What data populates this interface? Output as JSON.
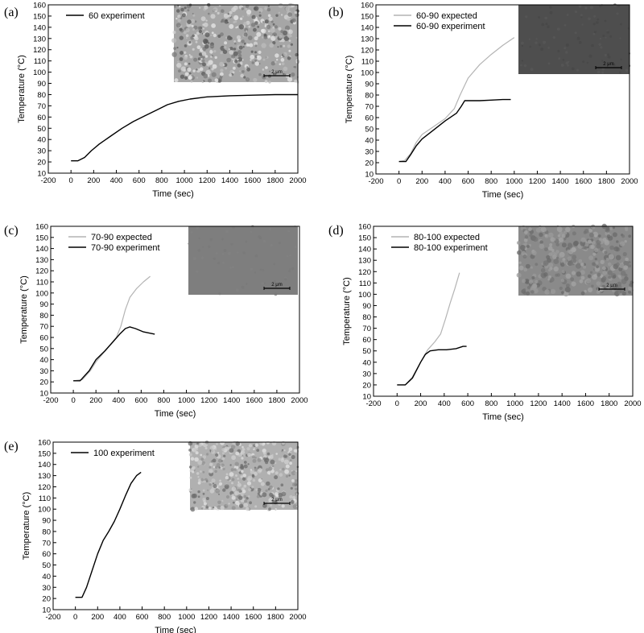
{
  "colors": {
    "experiment": "#000000",
    "expected": "#b4b4b4",
    "inset_light": "#bfbfbf",
    "inset_dark": "#555555",
    "inset_gray": "#888888"
  },
  "chart_data": [
    {
      "id": "a",
      "panel_label": "(a)",
      "type": "line",
      "xlabel": "Time (sec)",
      "ylabel": "Temperature (°C)",
      "xlim": [
        -200,
        2000
      ],
      "ylim": [
        10,
        160
      ],
      "xticks": [
        -200,
        0,
        200,
        400,
        600,
        800,
        1000,
        1200,
        1400,
        1600,
        1800,
        2000
      ],
      "yticks": [
        10,
        20,
        30,
        40,
        50,
        60,
        70,
        80,
        90,
        100,
        110,
        120,
        130,
        140,
        150,
        160
      ],
      "series": [
        {
          "name": "60 experiment",
          "kind": "experiment",
          "x": [
            0,
            60,
            120,
            180,
            250,
            350,
            450,
            550,
            650,
            750,
            850,
            950,
            1050,
            1200,
            1400,
            1600,
            1800,
            2000
          ],
          "y": [
            21,
            21,
            24,
            30,
            36,
            43,
            50,
            56,
            61,
            66,
            71,
            74,
            76,
            78,
            79,
            79.5,
            80,
            80
          ]
        }
      ],
      "inset": {
        "texture": "grainy",
        "scale_bar": "2 μm"
      }
    },
    {
      "id": "b",
      "panel_label": "(b)",
      "type": "line",
      "xlabel": "Time (sec)",
      "ylabel": "Temperature (°C)",
      "xlim": [
        -200,
        2000
      ],
      "ylim": [
        10,
        160
      ],
      "xticks": [
        -200,
        0,
        200,
        400,
        600,
        800,
        1000,
        1200,
        1400,
        1600,
        1800,
        2000
      ],
      "yticks": [
        10,
        20,
        30,
        40,
        50,
        60,
        70,
        80,
        90,
        100,
        110,
        120,
        130,
        140,
        150,
        160
      ],
      "series": [
        {
          "name": "60-90 expected",
          "kind": "expected",
          "x": [
            0,
            50,
            100,
            150,
            200,
            300,
            400,
            480,
            530,
            600,
            700,
            800,
            900,
            1000
          ],
          "y": [
            21,
            22,
            28,
            38,
            45,
            52,
            59,
            68,
            80,
            95,
            107,
            116,
            124,
            131
          ]
        },
        {
          "name": "60-90 experiment",
          "kind": "experiment",
          "x": [
            0,
            60,
            100,
            150,
            200,
            300,
            400,
            500,
            540,
            570,
            600,
            700,
            800,
            900,
            970
          ],
          "y": [
            21,
            21,
            27,
            35,
            41,
            49,
            57,
            64,
            70,
            75,
            75,
            75,
            75.5,
            76,
            76
          ]
        }
      ],
      "inset": {
        "texture": "dark",
        "scale_bar": "2 μm"
      }
    },
    {
      "id": "c",
      "panel_label": "(c)",
      "type": "line",
      "xlabel": "Time (sec)",
      "ylabel": "Temperature (°C)",
      "xlim": [
        -200,
        2000
      ],
      "ylim": [
        10,
        160
      ],
      "xticks": [
        -200,
        0,
        200,
        400,
        600,
        800,
        1000,
        1200,
        1400,
        1600,
        1800,
        2000
      ],
      "yticks": [
        10,
        20,
        30,
        40,
        50,
        60,
        70,
        80,
        90,
        100,
        110,
        120,
        130,
        140,
        150,
        160
      ],
      "series": [
        {
          "name": "70-90 expected",
          "kind": "expected",
          "x": [
            0,
            80,
            150,
            200,
            300,
            380,
            420,
            460,
            500,
            560,
            620,
            680
          ],
          "y": [
            21,
            22,
            30,
            38,
            50,
            60,
            70,
            85,
            96,
            104,
            110,
            115
          ]
        },
        {
          "name": "70-90 experiment",
          "kind": "experiment",
          "x": [
            0,
            60,
            140,
            200,
            280,
            350,
            410,
            460,
            500,
            550,
            620,
            720
          ],
          "y": [
            21,
            21,
            30,
            40,
            48,
            56,
            63,
            68,
            69.5,
            68,
            65,
            63
          ]
        }
      ],
      "inset": {
        "texture": "gray",
        "scale_bar": "2 μm"
      }
    },
    {
      "id": "d",
      "panel_label": "(d)",
      "type": "line",
      "xlabel": "Time (sec)",
      "ylabel": "Temperature (°C)",
      "xlim": [
        -200,
        2000
      ],
      "ylim": [
        10,
        160
      ],
      "xticks": [
        -200,
        0,
        200,
        400,
        600,
        800,
        1000,
        1200,
        1400,
        1600,
        1800,
        2000
      ],
      "yticks": [
        10,
        20,
        30,
        40,
        50,
        60,
        70,
        80,
        90,
        100,
        110,
        120,
        130,
        140,
        150,
        160
      ],
      "series": [
        {
          "name": "80-100 expected",
          "kind": "expected",
          "x": [
            0,
            70,
            130,
            200,
            260,
            320,
            370,
            410,
            450,
            490,
            530
          ],
          "y": [
            20,
            20,
            27,
            40,
            51,
            58,
            65,
            78,
            92,
            105,
            119
          ]
        },
        {
          "name": "80-100 experiment",
          "kind": "experiment",
          "x": [
            0,
            70,
            130,
            200,
            240,
            280,
            350,
            420,
            500,
            560,
            590
          ],
          "y": [
            20,
            20,
            26,
            40,
            47,
            50,
            51,
            51,
            52,
            54,
            54
          ]
        }
      ],
      "inset": {
        "texture": "mottled",
        "scale_bar": "2 μm"
      }
    },
    {
      "id": "e",
      "panel_label": "(e)",
      "type": "line",
      "xlabel": "Time (sec)",
      "ylabel": "Temperature (°C)",
      "xlim": [
        -200,
        2000
      ],
      "ylim": [
        10,
        160
      ],
      "xticks": [
        -200,
        0,
        200,
        400,
        600,
        800,
        1000,
        1200,
        1400,
        1600,
        1800,
        2000
      ],
      "yticks": [
        10,
        20,
        30,
        40,
        50,
        60,
        70,
        80,
        90,
        100,
        110,
        120,
        130,
        140,
        150,
        160
      ],
      "series": [
        {
          "name": "100 experiment",
          "kind": "experiment",
          "x": [
            0,
            60,
            100,
            150,
            200,
            250,
            300,
            350,
            400,
            450,
            500,
            550,
            590
          ],
          "y": [
            21,
            21,
            30,
            45,
            60,
            72,
            80,
            89,
            100,
            112,
            123,
            130,
            133
          ]
        }
      ],
      "inset": {
        "texture": "grainy-light",
        "scale_bar": "2 μm"
      }
    }
  ]
}
